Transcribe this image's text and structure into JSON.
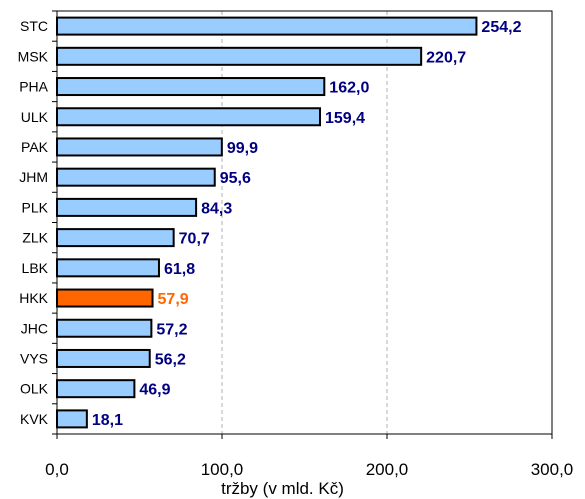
{
  "chart_data": {
    "type": "bar",
    "orientation": "horizontal",
    "categories": [
      "STC",
      "MSK",
      "PHA",
      "ULK",
      "PAK",
      "JHM",
      "PLK",
      "ZLK",
      "LBK",
      "HKK",
      "JHC",
      "VYS",
      "OLK",
      "KVK"
    ],
    "values": [
      254.2,
      220.7,
      162.0,
      159.4,
      99.9,
      95.6,
      84.3,
      70.7,
      61.8,
      57.9,
      57.2,
      56.2,
      46.9,
      18.1
    ],
    "value_labels": [
      "254,2",
      "220,7",
      "162,0",
      "159,4",
      "99,9",
      "95,6",
      "84,3",
      "70,7",
      "61,8",
      "57,9",
      "57,2",
      "56,2",
      "46,9",
      "18,1"
    ],
    "highlight": "HKK",
    "xlim": [
      0,
      300
    ],
    "x_ticks": [
      "0,0",
      "100,0",
      "200,0",
      "300,0"
    ],
    "xlabel": "tržby (v mld. Kč)",
    "ylabel": "",
    "grid": "vertical dashed",
    "colors": {
      "bar": "#99CCFF",
      "highlight_bar": "#FF6600",
      "bar_border": "#000000",
      "label": "#000080",
      "highlight_label": "#FF6600",
      "grid": "#B0B0B0"
    }
  }
}
